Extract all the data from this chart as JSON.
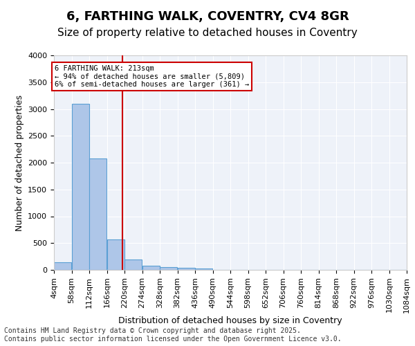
{
  "title_line1": "6, FARTHING WALK, COVENTRY, CV4 8GR",
  "title_line2": "Size of property relative to detached houses in Coventry",
  "xlabel": "Distribution of detached houses by size in Coventry",
  "ylabel": "Number of detached properties",
  "footer_line1": "Contains HM Land Registry data © Crown copyright and database right 2025.",
  "footer_line2": "Contains public sector information licensed under the Open Government Licence v3.0.",
  "bar_edges": [
    4,
    58,
    112,
    166,
    220,
    274,
    328,
    382,
    436,
    490,
    544,
    598,
    652,
    706,
    760,
    814,
    868,
    922,
    976,
    1030,
    1084
  ],
  "bar_values": [
    140,
    3100,
    2080,
    570,
    195,
    75,
    55,
    45,
    30,
    5,
    0,
    0,
    0,
    0,
    0,
    0,
    0,
    0,
    0,
    0
  ],
  "bar_color": "#aec6e8",
  "bar_edgecolor": "#5a9fd4",
  "subject_value": 213,
  "vline_color": "#cc0000",
  "annotation_text": "6 FARTHING WALK: 213sqm\n← 94% of detached houses are smaller (5,809)\n6% of semi-detached houses are larger (361) →",
  "annotation_box_color": "#cc0000",
  "annotation_text_color": "#000000",
  "ylim": [
    0,
    4000
  ],
  "yticks": [
    0,
    500,
    1000,
    1500,
    2000,
    2500,
    3000,
    3500,
    4000
  ],
  "background_color": "#eef2f9",
  "grid_color": "#ffffff",
  "title_fontsize": 13,
  "subtitle_fontsize": 11,
  "axis_label_fontsize": 9,
  "tick_fontsize": 8,
  "footer_fontsize": 7
}
